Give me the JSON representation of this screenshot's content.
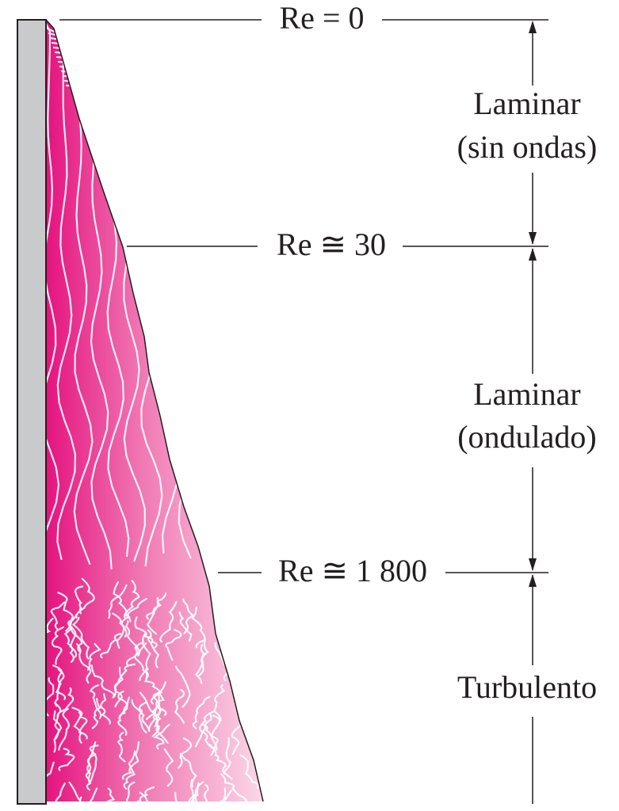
{
  "markers": [
    {
      "label": "Re = 0"
    },
    {
      "label": "Re ≅ 30"
    },
    {
      "label": "Re ≅ 1 800"
    }
  ],
  "regions": [
    {
      "lines": [
        "Laminar",
        "(sin ondas)"
      ]
    },
    {
      "lines": [
        "Laminar",
        "(ondulado)"
      ]
    },
    {
      "lines": [
        "Turbulento"
      ]
    }
  ]
}
